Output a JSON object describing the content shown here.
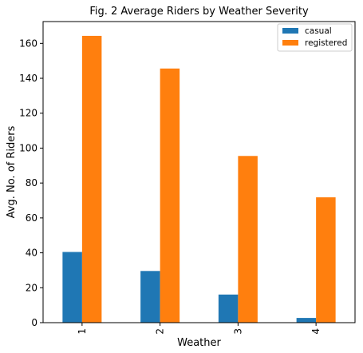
{
  "chart_data": {
    "type": "bar",
    "title": "Fig. 2 Average Riders by Weather Severity",
    "xlabel": "Weather",
    "ylabel": "Avg. No. of Riders",
    "categories": [
      "1",
      "2",
      "3",
      "4"
    ],
    "series": [
      {
        "name": "casual",
        "values": [
          40.5,
          29.6,
          16.1,
          2.7
        ],
        "color": "#1f77b4"
      },
      {
        "name": "registered",
        "values": [
          164.3,
          145.6,
          95.5,
          71.8
        ],
        "color": "#ff7f0e"
      }
    ],
    "ylim": [
      0,
      172.5
    ],
    "yticks": [
      0,
      20,
      40,
      60,
      80,
      100,
      120,
      140,
      160
    ],
    "grid": false,
    "legend_position": "top-right"
  }
}
